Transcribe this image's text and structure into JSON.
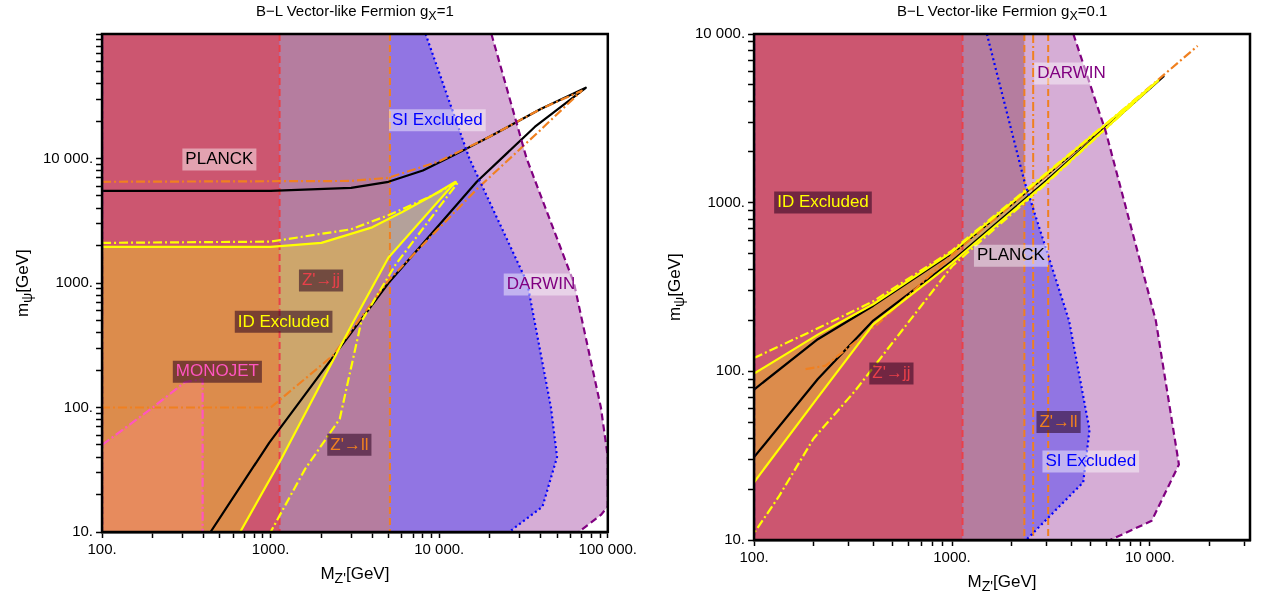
{
  "chart_data": [
    {
      "type": "line",
      "title": "B−L Vector-like Fermion g$_{X}$=1",
      "xlabel": "M$_{Z'}$[GeV]",
      "ylabel": "m$_{ψ}$[GeV]",
      "log": "xy",
      "xlim": [
        100,
        100000
      ],
      "ylim": [
        10,
        100000
      ],
      "xticks": [
        {
          "value": 100,
          "label": "100."
        },
        {
          "value": 200,
          "label": null
        },
        {
          "value": 300,
          "label": null
        },
        {
          "value": 400,
          "label": null
        },
        {
          "value": 500,
          "label": null
        },
        {
          "value": 600,
          "label": null
        },
        {
          "value": 700,
          "label": null
        },
        {
          "value": 800,
          "label": null
        },
        {
          "value": 900,
          "label": null
        },
        {
          "value": 1000,
          "label": "1000."
        },
        {
          "value": 2000,
          "label": null
        },
        {
          "value": 3000,
          "label": null
        },
        {
          "value": 4000,
          "label": null
        },
        {
          "value": 5000,
          "label": null
        },
        {
          "value": 6000,
          "label": null
        },
        {
          "value": 7000,
          "label": null
        },
        {
          "value": 8000,
          "label": null
        },
        {
          "value": 9000,
          "label": null
        },
        {
          "value": 10000,
          "label": "10 000."
        },
        {
          "value": 20000,
          "label": null
        },
        {
          "value": 30000,
          "label": null
        },
        {
          "value": 40000,
          "label": null
        },
        {
          "value": 50000,
          "label": null
        },
        {
          "value": 60000,
          "label": null
        },
        {
          "value": 70000,
          "label": null
        },
        {
          "value": 80000,
          "label": null
        },
        {
          "value": 90000,
          "label": null
        },
        {
          "value": 100000,
          "label": "100 000."
        }
      ],
      "yticks": [
        {
          "value": 10,
          "label": "10."
        },
        {
          "value": 20,
          "label": null
        },
        {
          "value": 30,
          "label": null
        },
        {
          "value": 40,
          "label": null
        },
        {
          "value": 50,
          "label": null
        },
        {
          "value": 60,
          "label": null
        },
        {
          "value": 70,
          "label": null
        },
        {
          "value": 80,
          "label": null
        },
        {
          "value": 90,
          "label": null
        },
        {
          "value": 100,
          "label": "100."
        },
        {
          "value": 200,
          "label": null
        },
        {
          "value": 300,
          "label": null
        },
        {
          "value": 400,
          "label": null
        },
        {
          "value": 500,
          "label": null
        },
        {
          "value": 600,
          "label": null
        },
        {
          "value": 700,
          "label": null
        },
        {
          "value": 800,
          "label": null
        },
        {
          "value": 900,
          "label": null
        },
        {
          "value": 1000,
          "label": "1000."
        },
        {
          "value": 2000,
          "label": null
        },
        {
          "value": 3000,
          "label": null
        },
        {
          "value": 4000,
          "label": null
        },
        {
          "value": 5000,
          "label": null
        },
        {
          "value": 6000,
          "label": null
        },
        {
          "value": 7000,
          "label": null
        },
        {
          "value": 8000,
          "label": null
        },
        {
          "value": 9000,
          "label": null
        },
        {
          "value": 10000,
          "label": "10 000."
        },
        {
          "value": 20000,
          "label": null
        },
        {
          "value": 30000,
          "label": null
        },
        {
          "value": 40000,
          "label": null
        },
        {
          "value": 50000,
          "label": null
        },
        {
          "value": 60000,
          "label": null
        },
        {
          "value": 70000,
          "label": null
        },
        {
          "value": 80000,
          "label": null
        },
        {
          "value": 90000,
          "label": null
        },
        {
          "value": 100000,
          "label": null
        }
      ],
      "bands": [
        {
          "axis": "x",
          "from": 100,
          "to": 1130,
          "color": "#cc5670"
        },
        {
          "axis": "x",
          "from": 1130,
          "to": 5100,
          "color": "#b57d9f"
        }
      ],
      "ref_lines": [
        {
          "axis": "x",
          "value": 1130,
          "label": "Z'→jj",
          "color": "#e8404a",
          "line_style": "dashed"
        },
        {
          "axis": "x",
          "value": 5100,
          "label": "Z'→ll",
          "color": "#f08020",
          "line_style": "dashed"
        }
      ],
      "series": [
        {
          "type": "area",
          "name": "DARWIN",
          "color": "#800080",
          "line_style": "dashed",
          "x": [
            20400,
            33000,
            63000,
            91000,
            100000,
            100000,
            91000,
            67000,
            100,
            100
          ],
          "values": [
            100000,
            10000,
            1000,
            100,
            40,
            16,
            13.7,
            10,
            10,
            100000
          ]
        },
        {
          "type": "area",
          "name": "SI Excluded",
          "color": "#0000ff",
          "line_style": "dotted",
          "x": [
            8300,
            15100,
            33300,
            46000,
            50000,
            41000,
            26000,
            100,
            100
          ],
          "values": [
            100000,
            10000,
            1000,
            100,
            40,
            16,
            10,
            10,
            100000
          ]
        },
        {
          "type": "area",
          "name": "MONOJET",
          "color": "#ff55c0",
          "line_style": "dashdot",
          "x": [
            100,
            200,
            310,
            395,
            395,
            100
          ],
          "values": [
            50,
            100,
            160,
            170,
            10,
            10
          ]
        },
        {
          "type": "area",
          "name": "ID Excluded",
          "color": "#ffff00",
          "line_style": "solid",
          "x": [
            100,
            1000,
            2000,
            4000,
            6000,
            9000,
            12500,
            5000,
            3100,
            2030,
            1150,
            660,
            100
          ],
          "values": [
            1950,
            1950,
            2100,
            2800,
            3700,
            5000,
            6500,
            1600,
            490,
            165,
            38,
            10,
            10
          ]
        },
        {
          "type": "line",
          "color": "#ffff00",
          "line_style": "dashdot",
          "x": [
            100,
            1000,
            3000,
            5000,
            9000,
            13000,
            5500,
            3450,
            2570,
            1600,
            1000
          ],
          "values": [
            2100,
            2150,
            2700,
            3500,
            5000,
            6500,
            1400,
            490,
            81,
            32,
            10
          ]
        },
        {
          "type": "line",
          "color": "#f08020",
          "line_style": "dashdot",
          "x": [
            100,
            3000,
            5000,
            10000,
            20000,
            40000,
            70000,
            40000,
            17000,
            5000,
            2330,
            1000,
            100
          ],
          "values": [
            6500,
            6600,
            7000,
            9500,
            15000,
            25000,
            35000,
            17000,
            5800,
            1050,
            260,
            100,
            100
          ]
        },
        {
          "type": "line",
          "name": "PLANCK",
          "color": "#000000",
          "line_style": "solid",
          "x": [
            100,
            1000,
            3000,
            5000,
            8000,
            12000,
            20000,
            40000,
            74000,
            37000,
            16700,
            5000,
            2130,
            980,
            440
          ],
          "values": [
            5500,
            5500,
            5800,
            6500,
            8000,
            10500,
            15000,
            25000,
            37000,
            18000,
            6500,
            1000,
            214,
            52,
            10
          ]
        }
      ]
    },
    {
      "type": "line",
      "title": "B−L Vector-like Fermion g$_{X}$=0.1",
      "xlabel": "M$_{Z'}$[GeV]",
      "ylabel": "m$_{ψ}$[GeV]",
      "log": "xy",
      "xlim": [
        100,
        32000
      ],
      "ylim": [
        10,
        10000
      ],
      "xticks": [
        {
          "value": 100,
          "label": "100."
        },
        {
          "value": 200,
          "label": null
        },
        {
          "value": 300,
          "label": null
        },
        {
          "value": 400,
          "label": null
        },
        {
          "value": 500,
          "label": null
        },
        {
          "value": 600,
          "label": null
        },
        {
          "value": 700,
          "label": null
        },
        {
          "value": 800,
          "label": null
        },
        {
          "value": 900,
          "label": null
        },
        {
          "value": 1000,
          "label": "1000."
        },
        {
          "value": 2000,
          "label": null
        },
        {
          "value": 3000,
          "label": null
        },
        {
          "value": 4000,
          "label": null
        },
        {
          "value": 5000,
          "label": null
        },
        {
          "value": 6000,
          "label": null
        },
        {
          "value": 7000,
          "label": null
        },
        {
          "value": 8000,
          "label": null
        },
        {
          "value": 9000,
          "label": null
        },
        {
          "value": 10000,
          "label": "10 000."
        },
        {
          "value": 20000,
          "label": null
        },
        {
          "value": 30000,
          "label": null
        }
      ],
      "yticks": [
        {
          "value": 10,
          "label": "10."
        },
        {
          "value": 20,
          "label": null
        },
        {
          "value": 30,
          "label": null
        },
        {
          "value": 40,
          "label": null
        },
        {
          "value": 50,
          "label": null
        },
        {
          "value": 60,
          "label": null
        },
        {
          "value": 70,
          "label": null
        },
        {
          "value": 80,
          "label": null
        },
        {
          "value": 90,
          "label": null
        },
        {
          "value": 100,
          "label": "100."
        },
        {
          "value": 200,
          "label": null
        },
        {
          "value": 300,
          "label": null
        },
        {
          "value": 400,
          "label": null
        },
        {
          "value": 500,
          "label": null
        },
        {
          "value": 600,
          "label": null
        },
        {
          "value": 700,
          "label": null
        },
        {
          "value": 800,
          "label": null
        },
        {
          "value": 900,
          "label": null
        },
        {
          "value": 1000,
          "label": "1000."
        },
        {
          "value": 2000,
          "label": null
        },
        {
          "value": 3000,
          "label": null
        },
        {
          "value": 4000,
          "label": null
        },
        {
          "value": 5000,
          "label": null
        },
        {
          "value": 6000,
          "label": null
        },
        {
          "value": 7000,
          "label": null
        },
        {
          "value": 8000,
          "label": null
        },
        {
          "value": 9000,
          "label": null
        },
        {
          "value": 10000,
          "label": "10 000."
        }
      ],
      "bands": [
        {
          "axis": "x",
          "from": 100,
          "to": 1130,
          "color": "#cc5670"
        },
        {
          "axis": "x",
          "from": 1130,
          "to": 2320,
          "color": "#b57d9f"
        }
      ],
      "ref_lines": [
        {
          "axis": "x",
          "value": 1130,
          "label": "Z'→jj",
          "color": "#e8404a",
          "line_style": "dashed"
        },
        {
          "axis": "x",
          "value": 2320,
          "label": "Z'→ll",
          "color": "#f08020",
          "line_style": "dashed"
        },
        {
          "axis": "x",
          "value": 2570,
          "color": "#f08020",
          "line_style": "dashdot"
        },
        {
          "axis": "x",
          "value": 3060,
          "color": "#f08020",
          "line_style": "dashed"
        }
      ],
      "series": [
        {
          "type": "area",
          "name": "DARWIN",
          "color": "#800080",
          "line_style": "dashed",
          "x": [
            4100,
            6000,
            10700,
            14000,
            10200,
            6300,
            100,
            100
          ],
          "values": [
            10000,
            2600,
            200,
            28,
            13,
            10,
            10,
            10000
          ]
        },
        {
          "type": "area",
          "name": "SI Excluded",
          "color": "#0000ff",
          "line_style": "dotted",
          "x": [
            1500,
            2320,
            3900,
            4950,
            4600,
            2370,
            100,
            100
          ],
          "values": [
            10000,
            1340,
            200,
            45,
            22,
            10,
            10,
            10000
          ]
        },
        {
          "type": "area",
          "name": "ID Excluded",
          "color": "#ffff00",
          "line_style": "solid",
          "x": [
            100,
            210,
            400,
            1000,
            3000,
            11000,
            3000,
            1000,
            400,
            210,
            100
          ],
          "values": [
            97,
            165,
            250,
            510,
            1480,
            5300,
            1320,
            440,
            190,
            70,
            22
          ]
        },
        {
          "type": "line",
          "color": "#ffff00",
          "line_style": "dashdot",
          "x": [
            100,
            210,
            400,
            1000,
            3000,
            11000,
            3000,
            1000,
            325,
            200,
            133,
            100
          ],
          "values": [
            120,
            180,
            260,
            520,
            1500,
            5300,
            1300,
            420,
            77,
            40,
            18,
            11
          ]
        },
        {
          "type": "line",
          "color": "#f08020",
          "line_style": "dashdot",
          "x": [
            182,
            230,
            420,
            1000,
            3000,
            17400
          ],
          "values": [
            103,
            108,
            190,
            490,
            1450,
            8500
          ]
        },
        {
          "type": "line",
          "name": "PLANCK",
          "color": "#000000",
          "line_style": "solid",
          "x": [
            100,
            210,
            400,
            1000,
            3000,
            11700,
            3000,
            1000,
            400,
            210,
            100
          ],
          "values": [
            78,
            155,
            245,
            500,
            1450,
            5600,
            1350,
            450,
            200,
            90,
            31
          ]
        }
      ]
    }
  ]
}
